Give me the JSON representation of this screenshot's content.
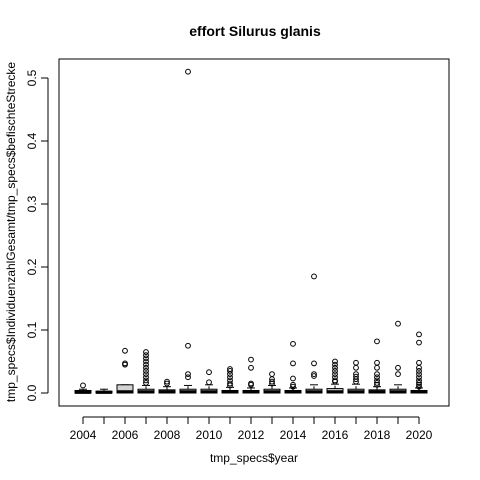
{
  "chart_data": {
    "type": "boxplot",
    "title": "effort Silurus glanis",
    "xlabel": "tmp_specs$year",
    "ylabel": "tmp_specs$IndividuenzahlGesamt/tmp_specs$befischteStrecke",
    "ylim": [
      0,
      0.5
    ],
    "yticks": [
      "0.0",
      "0.1",
      "0.2",
      "0.3",
      "0.4",
      "0.5"
    ],
    "categories": [
      "2004",
      "2005",
      "2006",
      "2007",
      "2008",
      "2009",
      "2010",
      "2011",
      "2012",
      "2013",
      "2014",
      "2015",
      "2016",
      "2017",
      "2018",
      "2019",
      "2020"
    ],
    "xtick_labels": [
      "2004",
      "2006",
      "2008",
      "2010",
      "2012",
      "2014",
      "2016",
      "2018",
      "2020"
    ],
    "grid": false,
    "boxes": [
      {
        "year": "2004",
        "min": 0,
        "q1": 0,
        "median": 0.001,
        "q3": 0.004,
        "max": 0.006,
        "outliers": [
          0.012
        ]
      },
      {
        "year": "2005",
        "min": 0,
        "q1": 0,
        "median": 0.001,
        "q3": 0.003,
        "max": 0.006,
        "outliers": []
      },
      {
        "year": "2006",
        "min": 0,
        "q1": 0,
        "median": 0.002,
        "q3": 0.013,
        "max": 0.013,
        "outliers": [
          0.045,
          0.047,
          0.067
        ]
      },
      {
        "year": "2007",
        "min": 0,
        "q1": 0,
        "median": 0.002,
        "q3": 0.006,
        "max": 0.012,
        "outliers": [
          0.016,
          0.02,
          0.025,
          0.03,
          0.035,
          0.04,
          0.045,
          0.05,
          0.055,
          0.06,
          0.065
        ]
      },
      {
        "year": "2008",
        "min": 0,
        "q1": 0,
        "median": 0.002,
        "q3": 0.005,
        "max": 0.01,
        "outliers": [
          0.015,
          0.018
        ]
      },
      {
        "year": "2009",
        "min": 0,
        "q1": 0,
        "median": 0.002,
        "q3": 0.006,
        "max": 0.012,
        "outliers": [
          0.025,
          0.03,
          0.075,
          0.51
        ]
      },
      {
        "year": "2010",
        "min": 0,
        "q1": 0,
        "median": 0.002,
        "q3": 0.006,
        "max": 0.013,
        "outliers": [
          0.017,
          0.033
        ]
      },
      {
        "year": "2011",
        "min": 0,
        "q1": 0,
        "median": 0.002,
        "q3": 0.004,
        "max": 0.009,
        "outliers": [
          0.012,
          0.015,
          0.02,
          0.025,
          0.03,
          0.035,
          0.038
        ]
      },
      {
        "year": "2012",
        "min": 0,
        "q1": 0,
        "median": 0.002,
        "q3": 0.004,
        "max": 0.008,
        "outliers": [
          0.013,
          0.015,
          0.04,
          0.053
        ]
      },
      {
        "year": "2013",
        "min": 0,
        "q1": 0,
        "median": 0.002,
        "q3": 0.006,
        "max": 0.012,
        "outliers": [
          0.015,
          0.018,
          0.022,
          0.03
        ]
      },
      {
        "year": "2014",
        "min": 0,
        "q1": 0,
        "median": 0.002,
        "q3": 0.004,
        "max": 0.008,
        "outliers": [
          0.01,
          0.013,
          0.023,
          0.047,
          0.078
        ]
      },
      {
        "year": "2015",
        "min": 0,
        "q1": 0,
        "median": 0.002,
        "q3": 0.006,
        "max": 0.013,
        "outliers": [
          0.027,
          0.03,
          0.047,
          0.185
        ]
      },
      {
        "year": "2016",
        "min": 0,
        "q1": 0,
        "median": 0.002,
        "q3": 0.007,
        "max": 0.014,
        "outliers": [
          0.018,
          0.02,
          0.025,
          0.03,
          0.035,
          0.04,
          0.045,
          0.05
        ]
      },
      {
        "year": "2017",
        "min": 0,
        "q1": 0,
        "median": 0.002,
        "q3": 0.006,
        "max": 0.014,
        "outliers": [
          0.018,
          0.022,
          0.026,
          0.03,
          0.04,
          0.048
        ]
      },
      {
        "year": "2018",
        "min": 0,
        "q1": 0,
        "median": 0.002,
        "q3": 0.005,
        "max": 0.01,
        "outliers": [
          0.013,
          0.016,
          0.02,
          0.025,
          0.03,
          0.04,
          0.048,
          0.082
        ]
      },
      {
        "year": "2019",
        "min": 0,
        "q1": 0,
        "median": 0.002,
        "q3": 0.006,
        "max": 0.013,
        "outliers": [
          0.03,
          0.04,
          0.11
        ]
      },
      {
        "year": "2020",
        "min": 0,
        "q1": 0,
        "median": 0.002,
        "q3": 0.004,
        "max": 0.008,
        "outliers": [
          0.01,
          0.013,
          0.016,
          0.02,
          0.025,
          0.03,
          0.035,
          0.04,
          0.048,
          0.08,
          0.093
        ]
      }
    ]
  }
}
